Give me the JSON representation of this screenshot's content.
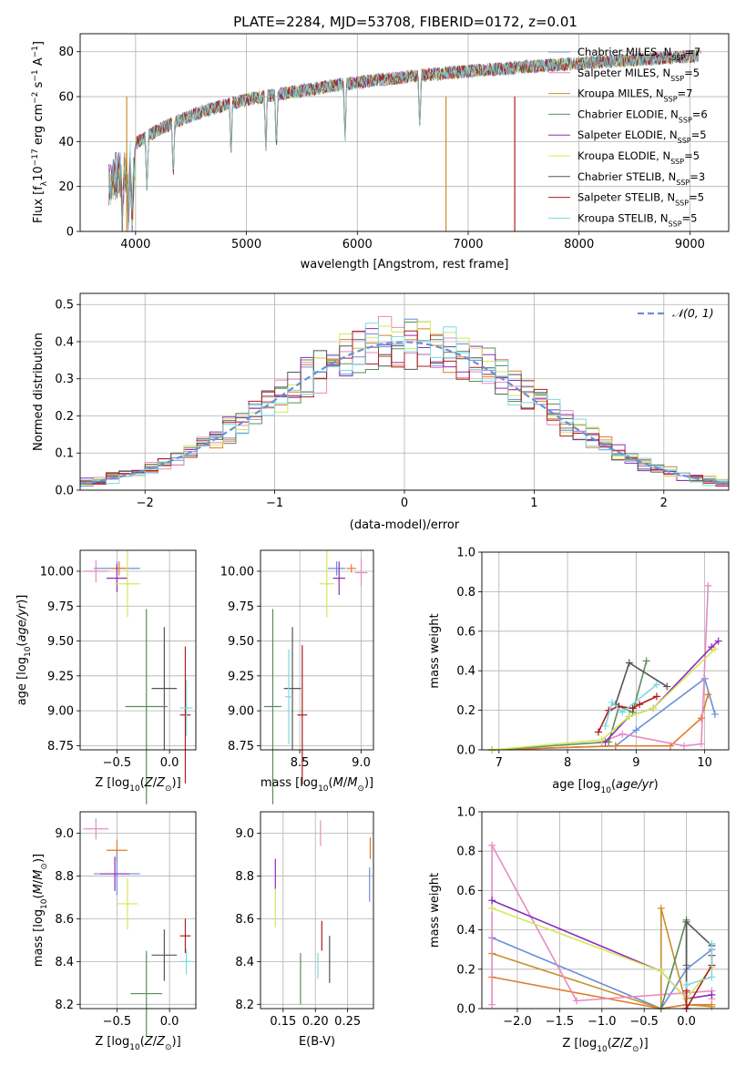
{
  "figure_title": "PLATE=2284, MJD=53708, FIBERID=0172, z=0.01",
  "colors": {
    "chabrier_miles": "#6a8fd9",
    "salpeter_miles": "#e07b2a",
    "kroupa_miles": "#c8902c",
    "chabrier_elodie": "#5b8c5a",
    "salpeter_elodie": "#8e2cb8",
    "kroupa_elodie": "#d4e85a",
    "chabrier_stelib": "#555555",
    "salpeter_stelib": "#b01c1c",
    "kroupa_stelib": "#7fd8e0",
    "pink": "#e88bc0",
    "gaussian": "#6a8fd9"
  },
  "legend_entries": [
    {
      "text": "Chabrier MILES, N",
      "sub": "SSP",
      "tail": "=7",
      "key": "chabrier_miles"
    },
    {
      "text": "Salpeter MILES, N",
      "sub": "SSP",
      "tail": "=5",
      "key": "pink"
    },
    {
      "text": "Kroupa MILES, N",
      "sub": "SSP",
      "tail": "=7",
      "key": "kroupa_miles"
    },
    {
      "text": "Chabrier ELODIE, N",
      "sub": "SSP",
      "tail": "=6",
      "key": "chabrier_elodie"
    },
    {
      "text": "Salpeter ELODIE, N",
      "sub": "SSP",
      "tail": "=5",
      "key": "salpeter_elodie"
    },
    {
      "text": "Kroupa ELODIE, N",
      "sub": "SSP",
      "tail": "=5",
      "key": "kroupa_elodie"
    },
    {
      "text": "Chabrier STELIB, N",
      "sub": "SSP",
      "tail": "=3",
      "key": "chabrier_stelib"
    },
    {
      "text": "Salpeter STELIB, N",
      "sub": "SSP",
      "tail": "=5",
      "key": "salpeter_stelib"
    },
    {
      "text": "Kroupa STELIB, N",
      "sub": "SSP",
      "tail": "=5",
      "key": "kroupa_stelib"
    }
  ],
  "chart_data": [
    {
      "id": "spectrum",
      "type": "line",
      "xlabel": "wavelength [Angstrom, rest frame]",
      "ylabel": "Flux [f",
      "ylabel_sub": "λ",
      "ylabel_rest": "10",
      "ylabel_sup": "−17",
      "ylabel_units": " erg cm",
      "xlim": [
        3500,
        9350
      ],
      "ylim": [
        0,
        88
      ],
      "xticks": [
        "4000",
        "5000",
        "6000",
        "7000",
        "8000",
        "9000"
      ],
      "yticks": [
        "0",
        "20",
        "40",
        "60",
        "80"
      ],
      "approx_series": "model spectra overlapping observed spectrum, flux rising from ~40 at 3800A to ~80 at 9000A"
    },
    {
      "id": "residuals",
      "type": "line",
      "xlabel": "(data-model)/error",
      "ylabel": "Normed distribution",
      "xlim": [
        -2.5,
        2.5
      ],
      "ylim": [
        0,
        0.53
      ],
      "xticks": [
        "−2",
        "−1",
        "0",
        "1",
        "2"
      ],
      "yticks": [
        "0.0",
        "0.1",
        "0.2",
        "0.3",
        "0.4",
        "0.5"
      ],
      "legend": "𝒩(0, 1)"
    },
    {
      "id": "age_vs_Z",
      "type": "scatter",
      "xlabel": "Z [log",
      "ylabel": "age  [log",
      "xlim": [
        -0.85,
        0.25
      ],
      "ylim": [
        8.72,
        10.15
      ],
      "xticks": [
        "−0.5",
        "0.0"
      ],
      "yticks": [
        "8.75",
        "9.00",
        "9.25",
        "9.50",
        "9.75",
        "10.00"
      ],
      "points": [
        {
          "x": -0.5,
          "y": 10.02,
          "xerr": 0.22,
          "yerr": 0.05,
          "key": "chabrier_miles"
        },
        {
          "x": -0.7,
          "y": 10.0,
          "xerr": 0.12,
          "yerr": 0.08,
          "key": "pink"
        },
        {
          "x": -0.48,
          "y": 10.02,
          "xerr": 0.08,
          "yerr": 0.05,
          "key": "salpeter_miles"
        },
        {
          "x": -0.5,
          "y": 9.95,
          "xerr": 0.1,
          "yerr": 0.1,
          "key": "salpeter_elodie"
        },
        {
          "x": -0.4,
          "y": 9.91,
          "xerr": 0.12,
          "yerr": 0.24,
          "key": "kroupa_elodie"
        },
        {
          "x": -0.05,
          "y": 9.16,
          "xerr": 0.12,
          "yerr": 0.44,
          "key": "chabrier_stelib"
        },
        {
          "x": -0.22,
          "y": 9.03,
          "xerr": 0.2,
          "yerr": 0.7,
          "key": "chabrier_elodie"
        },
        {
          "x": 0.15,
          "y": 8.97,
          "xerr": 0.05,
          "yerr": 0.49,
          "key": "salpeter_stelib"
        },
        {
          "x": 0.16,
          "y": 9.02,
          "xerr": 0.06,
          "yerr": 0.2,
          "key": "kroupa_stelib"
        }
      ]
    },
    {
      "id": "age_vs_mass",
      "type": "scatter",
      "xlabel": "mass [log",
      "xlim": [
        8.18,
        9.1
      ],
      "ylim": [
        8.72,
        10.15
      ],
      "xticks": [
        "8.5",
        "9.0"
      ],
      "yticks": [
        "8.75",
        "9.00",
        "9.25",
        "9.50",
        "9.75",
        "10.00"
      ],
      "points": [
        {
          "x": 8.8,
          "y": 10.02,
          "xerr": 0.07,
          "yerr": 0.05,
          "key": "chabrier_miles"
        },
        {
          "x": 9.0,
          "y": 9.99,
          "xerr": 0.05,
          "yerr": 0.1,
          "key": "pink"
        },
        {
          "x": 8.92,
          "y": 10.02,
          "xerr": 0.04,
          "yerr": 0.03,
          "key": "salpeter_miles"
        },
        {
          "x": 8.82,
          "y": 9.95,
          "xerr": 0.05,
          "yerr": 0.12,
          "key": "salpeter_elodie"
        },
        {
          "x": 8.72,
          "y": 9.91,
          "xerr": 0.06,
          "yerr": 0.24,
          "key": "kroupa_elodie"
        },
        {
          "x": 8.44,
          "y": 9.16,
          "xerr": 0.07,
          "yerr": 0.44,
          "key": "chabrier_stelib"
        },
        {
          "x": 8.28,
          "y": 9.03,
          "xerr": 0.07,
          "yerr": 0.7,
          "key": "chabrier_elodie"
        },
        {
          "x": 8.52,
          "y": 8.97,
          "xerr": 0.04,
          "yerr": 0.5,
          "key": "salpeter_stelib"
        },
        {
          "x": 8.41,
          "y": 9.1,
          "xerr": 0.03,
          "yerr": 0.34,
          "key": "kroupa_stelib"
        }
      ]
    },
    {
      "id": "massweight_vs_age",
      "type": "line",
      "xlabel": "age  [log",
      "ylabel": "mass weight",
      "xlim": [
        6.75,
        10.35
      ],
      "ylim": [
        0,
        1
      ],
      "xticks": [
        "7",
        "8",
        "9",
        "10"
      ],
      "yticks": [
        "0.0",
        "0.2",
        "0.4",
        "0.6",
        "0.8",
        "1.0"
      ],
      "series": [
        {
          "key": "chabrier_miles",
          "x": [
            6.9,
            8.7,
            9.0,
            10.0,
            10.15
          ],
          "y": [
            0.0,
            0.02,
            0.1,
            0.36,
            0.18
          ]
        },
        {
          "key": "salpeter_miles",
          "x": [
            6.9,
            8.7,
            9.5,
            9.95,
            10.05
          ],
          "y": [
            0.0,
            0.02,
            0.02,
            0.16,
            0.28
          ]
        },
        {
          "key": "pink",
          "x": [
            8.5,
            8.8,
            9.7,
            9.95,
            10.05
          ],
          "y": [
            0.04,
            0.08,
            0.02,
            0.03,
            0.83
          ]
        },
        {
          "key": "chabrier_elodie",
          "x": [
            6.9,
            8.6,
            8.75,
            8.95,
            9.15
          ],
          "y": [
            0.0,
            0.04,
            0.22,
            0.19,
            0.45
          ]
        },
        {
          "key": "salpeter_elodie",
          "x": [
            8.55,
            8.9,
            9.25,
            10.1,
            10.2
          ],
          "y": [
            0.04,
            0.17,
            0.21,
            0.52,
            0.55
          ]
        },
        {
          "key": "kroupa_elodie",
          "x": [
            6.9,
            8.5,
            8.9,
            9.25,
            10.15
          ],
          "y": [
            0.0,
            0.05,
            0.17,
            0.21,
            0.51
          ]
        },
        {
          "key": "chabrier_stelib",
          "x": [
            8.7,
            8.9,
            9.45
          ],
          "y": [
            0.23,
            0.44,
            0.32
          ]
        },
        {
          "key": "salpeter_stelib",
          "x": [
            8.45,
            8.6,
            8.75,
            8.95,
            9.05,
            9.3
          ],
          "y": [
            0.09,
            0.2,
            0.22,
            0.21,
            0.23,
            0.27
          ]
        },
        {
          "key": "kroupa_stelib",
          "x": [
            8.55,
            8.65,
            8.8,
            9.3
          ],
          "y": [
            0.12,
            0.24,
            0.19,
            0.33
          ]
        }
      ]
    },
    {
      "id": "mass_vs_Z",
      "type": "scatter",
      "xlabel": "Z [log",
      "ylabel": "mass [log",
      "xlim": [
        -0.85,
        0.25
      ],
      "ylim": [
        8.18,
        9.1
      ],
      "xticks": [
        "−0.5",
        "0.0"
      ],
      "yticks": [
        "8.2",
        "8.4",
        "8.6",
        "8.8",
        "9.0"
      ],
      "points": [
        {
          "x": -0.7,
          "y": 9.02,
          "xerr": 0.12,
          "yerr": 0.05,
          "key": "pink"
        },
        {
          "x": -0.5,
          "y": 8.92,
          "xerr": 0.1,
          "yerr": 0.05,
          "key": "salpeter_miles"
        },
        {
          "x": -0.5,
          "y": 8.81,
          "xerr": 0.22,
          "yerr": 0.1,
          "key": "chabrier_miles"
        },
        {
          "x": -0.52,
          "y": 8.81,
          "xerr": 0.14,
          "yerr": 0.08,
          "key": "salpeter_elodie"
        },
        {
          "x": -0.4,
          "y": 8.67,
          "xerr": 0.1,
          "yerr": 0.12,
          "key": "kroupa_elodie"
        },
        {
          "x": -0.05,
          "y": 8.43,
          "xerr": 0.12,
          "yerr": 0.12,
          "key": "chabrier_stelib"
        },
        {
          "x": -0.22,
          "y": 8.25,
          "xerr": 0.15,
          "yerr": 0.2,
          "key": "chabrier_elodie"
        },
        {
          "x": 0.15,
          "y": 8.52,
          "xerr": 0.05,
          "yerr": 0.08,
          "key": "salpeter_stelib"
        },
        {
          "x": 0.16,
          "y": 8.4,
          "xerr": 0.05,
          "yerr": 0.06,
          "key": "kroupa_stelib"
        }
      ]
    },
    {
      "id": "mass_vs_ebv",
      "type": "scatter",
      "xlabel": "E(B-V)",
      "xlim": [
        0.115,
        0.29
      ],
      "ylim": [
        8.18,
        9.1
      ],
      "xticks": [
        "0.15",
        "0.20",
        "0.25"
      ],
      "yticks": [
        "8.2",
        "8.4",
        "8.6",
        "8.8",
        "9.0"
      ],
      "points": [
        {
          "x": 0.208,
          "y": 9.0,
          "xerr": 0.0,
          "yerr": 0.06,
          "key": "pink"
        },
        {
          "x": 0.285,
          "y": 8.93,
          "xerr": 0.0,
          "yerr": 0.05,
          "key": "salpeter_miles"
        },
        {
          "x": 0.284,
          "y": 8.76,
          "xerr": 0.0,
          "yerr": 0.08,
          "key": "chabrier_miles"
        },
        {
          "x": 0.138,
          "y": 8.81,
          "xerr": 0.0,
          "yerr": 0.07,
          "key": "salpeter_elodie"
        },
        {
          "x": 0.138,
          "y": 8.65,
          "xerr": 0.0,
          "yerr": 0.09,
          "key": "kroupa_elodie"
        },
        {
          "x": 0.222,
          "y": 8.41,
          "xerr": 0.0,
          "yerr": 0.11,
          "key": "chabrier_stelib"
        },
        {
          "x": 0.177,
          "y": 8.32,
          "xerr": 0.0,
          "yerr": 0.12,
          "key": "chabrier_elodie"
        },
        {
          "x": 0.21,
          "y": 8.52,
          "xerr": 0.0,
          "yerr": 0.07,
          "key": "salpeter_stelib"
        },
        {
          "x": 0.204,
          "y": 8.38,
          "xerr": 0.0,
          "yerr": 0.06,
          "key": "kroupa_stelib"
        }
      ]
    },
    {
      "id": "massweight_vs_Z",
      "type": "line",
      "xlabel": "Z [log",
      "ylabel": "mass weight",
      "xlim": [
        -2.42,
        0.5
      ],
      "ylim": [
        0,
        1
      ],
      "xticks": [
        "−2.0",
        "−1.5",
        "−1.0",
        "−0.5",
        "0.0"
      ],
      "yticks": [
        "0.0",
        "0.2",
        "0.4",
        "0.6",
        "0.8",
        "1.0"
      ],
      "series": [
        {
          "key": "chabrier_miles",
          "x": [
            -2.3,
            -0.3,
            0.0,
            0.3
          ],
          "y": [
            0.36,
            0.0,
            0.2,
            0.3
          ]
        },
        {
          "key": "salpeter_miles",
          "x": [
            -2.3,
            -0.3,
            0.0,
            0.3
          ],
          "y": [
            0.16,
            0.0,
            0.02,
            0.02
          ]
        },
        {
          "key": "kroupa_miles",
          "x": [
            -2.3,
            -0.3,
            -0.3,
            0.0,
            0.3
          ],
          "y": [
            0.28,
            0.0,
            0.51,
            0.02,
            0.01
          ]
        },
        {
          "key": "pink",
          "x": [
            -2.3,
            -2.3,
            -1.3,
            0.0,
            0.3,
            0.3
          ],
          "y": [
            0.02,
            0.83,
            0.04,
            0.08,
            0.09,
            0.05
          ]
        },
        {
          "key": "chabrier_elodie",
          "x": [
            -0.3,
            0.0,
            0.0
          ],
          "y": [
            0.0,
            0.45,
            0.22
          ]
        },
        {
          "key": "salpeter_elodie",
          "x": [
            -2.3,
            -0.3,
            0.0,
            0.3
          ],
          "y": [
            0.55,
            0.19,
            0.05,
            0.07
          ]
        },
        {
          "key": "kroupa_elodie",
          "x": [
            -2.3,
            -0.3,
            0.0,
            0.3
          ],
          "y": [
            0.51,
            0.19,
            0.05,
            0.21
          ]
        },
        {
          "key": "chabrier_stelib",
          "x": [
            0.0,
            0.0,
            0.3
          ],
          "y": [
            0.0,
            0.44,
            0.32
          ]
        },
        {
          "key": "salpeter_stelib",
          "x": [
            0.0,
            0.0,
            0.3,
            0.3
          ],
          "y": [
            0.09,
            0.0,
            0.22,
            0.27
          ]
        },
        {
          "key": "kroupa_stelib",
          "x": [
            0.0,
            0.3,
            0.3
          ],
          "y": [
            0.12,
            0.16,
            0.33
          ]
        }
      ]
    }
  ]
}
